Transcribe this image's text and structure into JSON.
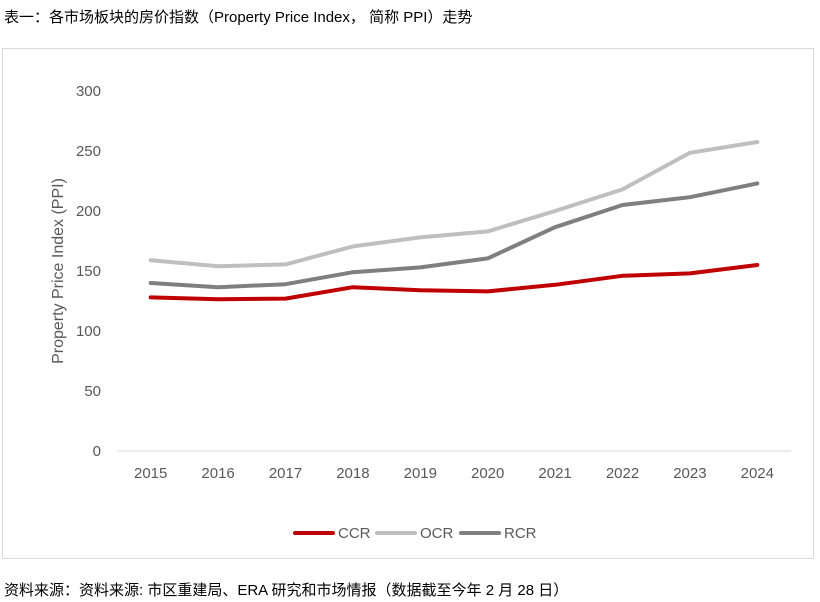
{
  "title": "表一：各市场板块的房价指数（Property Price Index， 简称 PPI）走势",
  "source": "资料来源：资料来源: 市区重建局、ERA 研究和市场情报（数据截至今年 2 月 28 日）",
  "colors": {
    "CCR": "#c00000",
    "OCR": "#bfbfbf",
    "RCR": "#7f7f7f",
    "axis_text": "#595959",
    "baseline": "#d9d9d9"
  },
  "chart_data": {
    "type": "line",
    "title": "",
    "xlabel": "",
    "ylabel": "Property Price Index (PPI)",
    "ylim": [
      0,
      300
    ],
    "yticks": [
      0,
      50,
      100,
      150,
      200,
      250,
      300
    ],
    "categories": [
      "2015",
      "2016",
      "2017",
      "2018",
      "2019",
      "2020",
      "2021",
      "2022",
      "2023",
      "2024"
    ],
    "grid": false,
    "legend_position": "bottom",
    "series": [
      {
        "name": "CCR",
        "values": [
          128,
          126.5,
          127,
          136.5,
          134,
          133,
          138.5,
          146,
          148,
          155
        ]
      },
      {
        "name": "OCR",
        "values": [
          159,
          154,
          155.5,
          170.5,
          178,
          183,
          200,
          218,
          248.5,
          257.5
        ]
      },
      {
        "name": "RCR",
        "values": [
          140,
          136.5,
          139,
          149,
          153,
          160.5,
          186.5,
          205,
          211.5,
          223
        ]
      }
    ]
  }
}
